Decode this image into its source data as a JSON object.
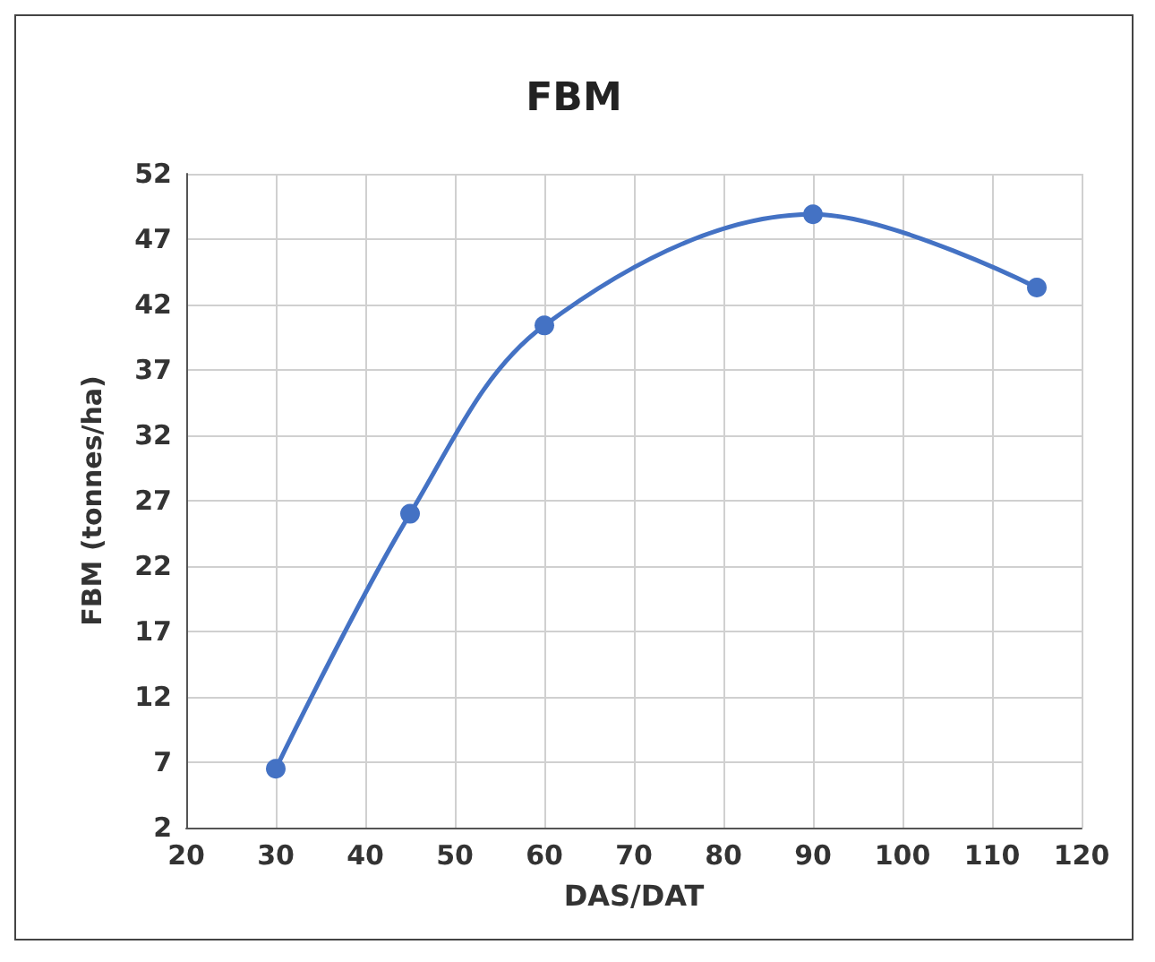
{
  "chart_data": {
    "type": "line",
    "title": "FBM",
    "xlabel": "DAS/DAT",
    "ylabel": "FBM (tonnes/ha)",
    "x": [
      30,
      45,
      60,
      90,
      115
    ],
    "series": [
      {
        "color": "#4472c4",
        "values": [
          6.5,
          26.0,
          40.4,
          48.9,
          43.3
        ]
      }
    ],
    "xlim": [
      20,
      120
    ],
    "xticks": [
      20,
      30,
      40,
      50,
      60,
      70,
      80,
      90,
      100,
      110,
      120
    ],
    "ylim": [
      2,
      52
    ],
    "yticks": [
      2,
      7,
      12,
      17,
      22,
      27,
      32,
      37,
      42,
      47,
      52
    ],
    "grid": true,
    "marker": "circle",
    "line_style": "solid"
  }
}
